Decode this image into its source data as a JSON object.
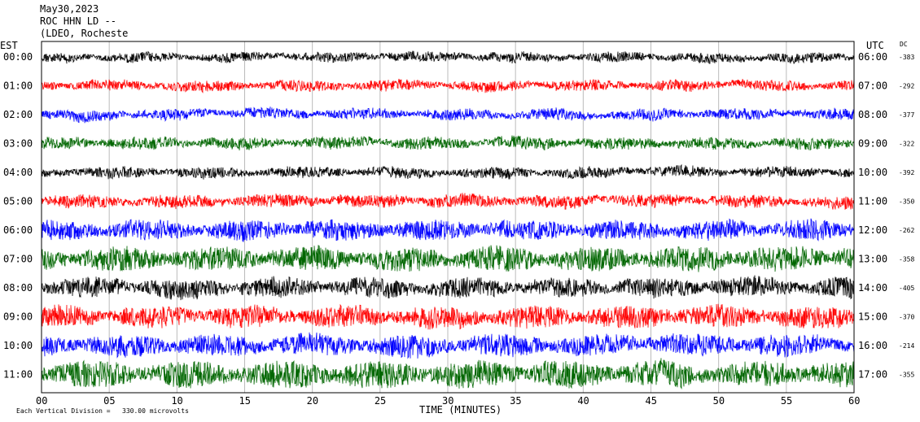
{
  "header": {
    "date": "May30,2023",
    "station": "ROC HHN LD --",
    "network": "(LDEO, Rocheste"
  },
  "chart_data": {
    "type": "line",
    "left_axis_title": "EST",
    "right_axis_title": "UTC",
    "dc_title": "DC",
    "xlabel": "TIME (MINUTES)",
    "x_ticks": [
      "00",
      "05",
      "10",
      "15",
      "20",
      "25",
      "30",
      "35",
      "40",
      "45",
      "50",
      "55",
      "60"
    ],
    "xlim": [
      0,
      60
    ],
    "vertical_division_note": "Each Vertical Division =",
    "vertical_division_value": "330.00 microvolts",
    "colors": [
      "#000000",
      "#ff0000",
      "#0000ff",
      "#006600"
    ],
    "series": [
      {
        "est": "00:00",
        "utc": "06:00",
        "dc": "-383",
        "amplitude": 0.45
      },
      {
        "est": "01:00",
        "utc": "07:00",
        "dc": "-292",
        "amplitude": 0.5
      },
      {
        "est": "02:00",
        "utc": "08:00",
        "dc": "-377",
        "amplitude": 0.5
      },
      {
        "est": "03:00",
        "utc": "09:00",
        "dc": "-322",
        "amplitude": 0.55
      },
      {
        "est": "04:00",
        "utc": "10:00",
        "dc": "-392",
        "amplitude": 0.5
      },
      {
        "est": "05:00",
        "utc": "11:00",
        "dc": "-350",
        "amplitude": 0.6
      },
      {
        "est": "06:00",
        "utc": "12:00",
        "dc": "-262",
        "amplitude": 0.9
      },
      {
        "est": "07:00",
        "utc": "13:00",
        "dc": "-358",
        "amplitude": 1.1
      },
      {
        "est": "08:00",
        "utc": "14:00",
        "dc": "-405",
        "amplitude": 0.9
      },
      {
        "est": "09:00",
        "utc": "15:00",
        "dc": "-370",
        "amplitude": 1.0
      },
      {
        "est": "10:00",
        "utc": "16:00",
        "dc": "-214",
        "amplitude": 1.0
      },
      {
        "est": "11:00",
        "utc": "17:00",
        "dc": "-355",
        "amplitude": 1.2
      }
    ],
    "grid": true
  }
}
